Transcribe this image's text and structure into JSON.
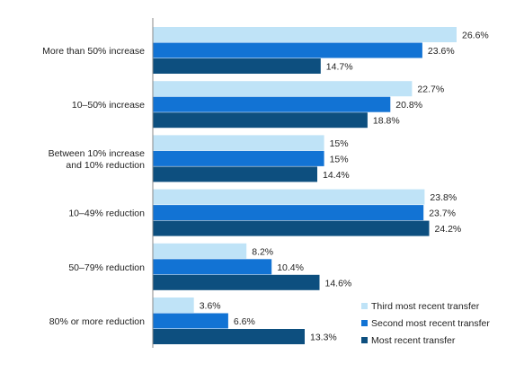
{
  "chart_data": {
    "type": "bar",
    "orientation": "horizontal",
    "categories": [
      [
        "More than 50% increase"
      ],
      [
        "10–50% increase"
      ],
      [
        "Between 10% increase",
        "and 10% reduction"
      ],
      [
        "10–49% reduction"
      ],
      [
        "50–79% reduction"
      ],
      [
        "80% or more reduction"
      ]
    ],
    "series": [
      {
        "name": "Third most recent transfer",
        "color": "#bfe3f7",
        "values": [
          26.6,
          22.7,
          15,
          23.8,
          8.2,
          3.6
        ],
        "labels": [
          "26.6%",
          "22.7%",
          "15%",
          "23.8%",
          "8.2%",
          "3.6%"
        ]
      },
      {
        "name": "Second most recent transfer",
        "color": "#1273d4",
        "values": [
          23.6,
          20.8,
          15,
          23.7,
          10.4,
          6.6
        ],
        "labels": [
          "23.6%",
          "20.8%",
          "15%",
          "23.7%",
          "10.4%",
          "6.6%"
        ]
      },
      {
        "name": "Most recent transfer",
        "color": "#0d4f7f",
        "values": [
          14.7,
          18.8,
          14.4,
          24.2,
          14.6,
          13.3
        ],
        "labels": [
          "14.7%",
          "18.8%",
          "14.4%",
          "24.2%",
          "14.6%",
          "13.3%"
        ]
      }
    ],
    "xlim": [
      0,
      26.6
    ],
    "grid": false,
    "legend_position": "bottom-right"
  }
}
